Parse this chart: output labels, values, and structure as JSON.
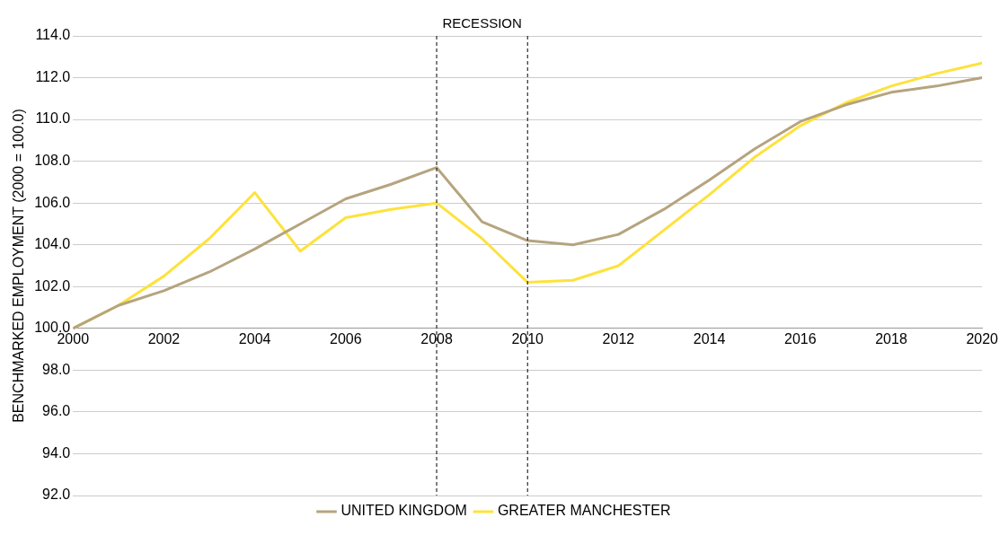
{
  "chart_data": {
    "type": "line",
    "ylabel": "BENCHMARKED EMPLOYMENT (2000 = 100.0)",
    "x": [
      2000,
      2001,
      2002,
      2003,
      2004,
      2005,
      2006,
      2007,
      2008,
      2009,
      2010,
      2011,
      2012,
      2013,
      2014,
      2015,
      2016,
      2017,
      2018,
      2019,
      2020
    ],
    "series": [
      {
        "name": "UNITED KINGDOM",
        "color": "#b5a47e",
        "values": [
          100.0,
          101.1,
          101.8,
          102.7,
          103.8,
          105.0,
          106.2,
          106.9,
          107.7,
          105.1,
          104.2,
          104.0,
          104.5,
          105.7,
          107.1,
          108.6,
          109.9,
          110.7,
          111.3,
          111.6,
          112.0
        ]
      },
      {
        "name": "GREATER MANCHESTER",
        "color": "#fde23c",
        "values": [
          100.0,
          101.1,
          102.5,
          104.3,
          106.5,
          103.7,
          105.3,
          105.7,
          106.0,
          104.3,
          102.2,
          102.3,
          103.0,
          104.7,
          106.4,
          108.2,
          109.7,
          110.8,
          111.6,
          112.2,
          112.7
        ]
      }
    ],
    "xlim": [
      2000,
      2020
    ],
    "xticks": [
      2000,
      2002,
      2004,
      2006,
      2008,
      2010,
      2012,
      2014,
      2016,
      2018,
      2020
    ],
    "ylim": [
      92,
      114
    ],
    "yticks": [
      {
        "value": 92,
        "label": "92.0"
      },
      {
        "value": 94,
        "label": "94.0"
      },
      {
        "value": 96,
        "label": "96.0"
      },
      {
        "value": 98,
        "label": "98.0"
      },
      {
        "value": 100,
        "label": "100.0"
      },
      {
        "value": 102,
        "label": "102.0"
      },
      {
        "value": 104,
        "label": "104.0"
      },
      {
        "value": 106,
        "label": "106.0"
      },
      {
        "value": 108,
        "label": "108.0"
      },
      {
        "value": 110,
        "label": "110.0"
      },
      {
        "value": 112,
        "label": "112.0"
      },
      {
        "value": 114,
        "label": "114.0"
      }
    ],
    "ref_lines": [
      {
        "axis": "x",
        "value": 2008,
        "label": null,
        "color": "#000000",
        "line_style": "dashed"
      },
      {
        "axis": "x",
        "value": 2010,
        "label": null,
        "color": "#000000",
        "line_style": "dashed"
      }
    ],
    "annotations": [
      "RECESSION"
    ],
    "grid": "y",
    "legend": "bottom",
    "marker": "none",
    "line_style": "solid"
  }
}
